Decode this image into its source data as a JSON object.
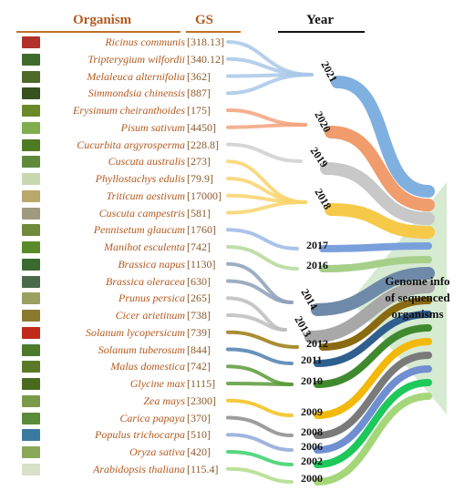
{
  "headers": {
    "organism": "Organism",
    "gs": "GS",
    "year": "Year"
  },
  "callout": {
    "line1": "Genome info",
    "line2": "of sequenced",
    "line3": "organisms"
  },
  "organisms": [
    {
      "name": "Ricinus communis",
      "gs": "[318.13]",
      "year": "2021",
      "color": "#a9c8e8"
    },
    {
      "name": "Tripterygium wilfordii",
      "gs": "[340.12]",
      "year": "2021",
      "color": "#a9c8e8"
    },
    {
      "name": "Melaleuca alternifolia",
      "gs": "[362]",
      "year": "2021",
      "color": "#a9c8e8"
    },
    {
      "name": "Simmondsia chinensis",
      "gs": "[887]",
      "year": "2021",
      "color": "#a9c8e8"
    },
    {
      "name": "Erysimum cheiranthoides",
      "gs": "[175]",
      "year": "2020",
      "color": "#f2a37d"
    },
    {
      "name": "Pisum sativum",
      "gs": "[4450]",
      "year": "2020",
      "color": "#f2a37d"
    },
    {
      "name": "Cucurbita argyrosperma",
      "gs": "[228.8]",
      "year": "2019",
      "color": "#cfcfcf"
    },
    {
      "name": "Cuscuta australis",
      "gs": "[273]",
      "year": "2018",
      "color": "#f7d36b"
    },
    {
      "name": "Phyllostachys edulis",
      "gs": "[79.9]",
      "year": "2018",
      "color": "#f7d36b"
    },
    {
      "name": "Triticum aestivum",
      "gs": "[17000]",
      "year": "2018",
      "color": "#f7d36b"
    },
    {
      "name": "Cuscuta campestris",
      "gs": "[581]",
      "year": "2018",
      "color": "#f7d36b"
    },
    {
      "name": "Pennisetum glaucum",
      "gs": "[1760]",
      "year": "2017",
      "color": "#9bb8e6"
    },
    {
      "name": "Manihot esculenta",
      "gs": "[742]",
      "year": "2016",
      "color": "#b5d89a"
    },
    {
      "name": "Brassica napus",
      "gs": "[1130]",
      "year": "2014",
      "color": "#8da0b8"
    },
    {
      "name": "Brassica oleracea",
      "gs": "[630]",
      "year": "2014",
      "color": "#8da0b8"
    },
    {
      "name": "Prunus persica",
      "gs": "[265]",
      "year": "2013",
      "color": "#bdbdbd"
    },
    {
      "name": "Cicer arietinum",
      "gs": "[738]",
      "year": "2013",
      "color": "#bdbdbd"
    },
    {
      "name": "Solanum lycopersicum",
      "gs": "[739]",
      "year": "2012",
      "color": "#9a7a10"
    },
    {
      "name": "Solanum tuberosum",
      "gs": "[844]",
      "year": "2011",
      "color": "#4d7fb0"
    },
    {
      "name": "Malus domestica",
      "gs": "[742]",
      "year": "2010",
      "color": "#5a9a3a"
    },
    {
      "name": "Glycine max",
      "gs": "[1115]",
      "year": "2010",
      "color": "#5a9a3a"
    },
    {
      "name": "Zea mays",
      "gs": "[2300]",
      "year": "2009",
      "color": "#f2c019"
    },
    {
      "name": "Carica papaya",
      "gs": "[370]",
      "year": "2008",
      "color": "#8c8c8c"
    },
    {
      "name": "Populus trichocarpa",
      "gs": "[510]",
      "year": "2006",
      "color": "#8fa8d8"
    },
    {
      "name": "Oryza sativa",
      "gs": "[420]",
      "year": "2002",
      "color": "#3ad06a"
    },
    {
      "name": "Arabidopsis thaliana",
      "gs": "[115.4]",
      "year": "2000",
      "color": "#b2dc8a"
    }
  ],
  "years": [
    {
      "label": "2021",
      "color": "#7fb0e0"
    },
    {
      "label": "2020",
      "color": "#f09c6c"
    },
    {
      "label": "2019",
      "color": "#c8c8c8"
    },
    {
      "label": "2018",
      "color": "#f7c948"
    },
    {
      "label": "2017",
      "color": "#7aa0dc"
    },
    {
      "label": "2016",
      "color": "#a6d08a"
    },
    {
      "label": "2014",
      "color": "#6f8aa8"
    },
    {
      "label": "2013",
      "color": "#a8a8a8"
    },
    {
      "label": "2012",
      "color": "#8a6a10"
    },
    {
      "label": "2011",
      "color": "#2f5f8f"
    },
    {
      "label": "2010",
      "color": "#3f8a2f"
    },
    {
      "label": "2009",
      "color": "#f2b90c"
    },
    {
      "label": "2008",
      "color": "#7a7a7a"
    },
    {
      "label": "2006",
      "color": "#6f8fd0"
    },
    {
      "label": "2002",
      "color": "#1ec85a"
    },
    {
      "label": "2000",
      "color": "#a6d67a"
    }
  ],
  "thumb_colors": [
    "#b0322a",
    "#3f6b2d",
    "#4d6a2a",
    "#37511f",
    "#6a8a2a",
    "#7fae4f",
    "#4f7a24",
    "#5f8a3c",
    "#c8d8b0",
    "#b8a86a",
    "#a09a80",
    "#6f8a3a",
    "#5a8a2a",
    "#3a6a30",
    "#4a6a4a",
    "#9aa060",
    "#8a7a30",
    "#c02a1a",
    "#4a7a2a",
    "#5a7a2a",
    "#4a6a20",
    "#7a9a4a",
    "#5a8a3a",
    "#3a7aa0",
    "#8aa85a",
    "#d8e0c8"
  ]
}
